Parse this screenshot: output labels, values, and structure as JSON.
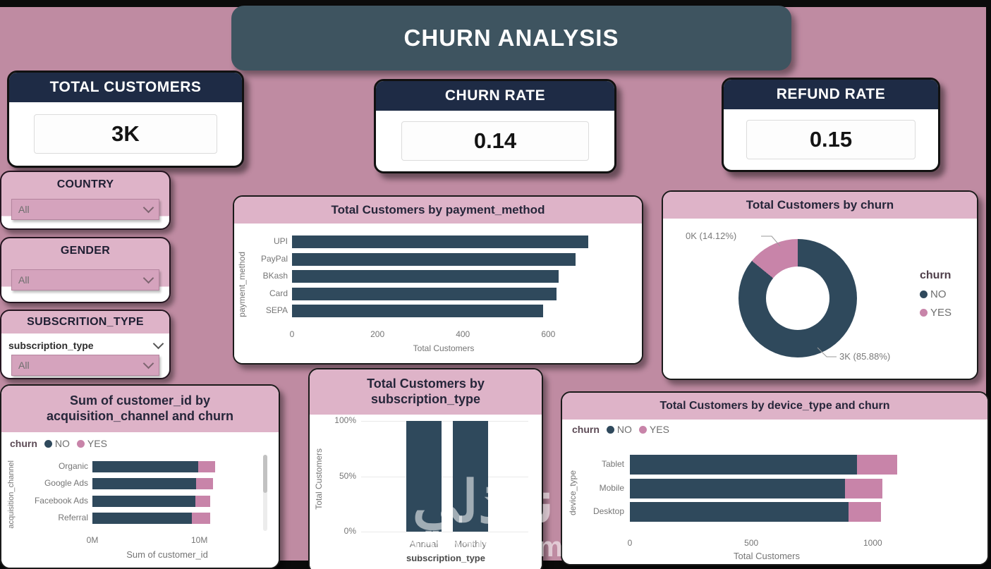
{
  "dashboard_title": "CHURN ANALYSIS",
  "kpis": [
    {
      "label": "TOTAL CUSTOMERS",
      "value": "3K"
    },
    {
      "label": "CHURN RATE",
      "value": "0.14"
    },
    {
      "label": "REFUND RATE",
      "value": "0.15"
    }
  ],
  "filters": [
    {
      "label": "COUNTRY",
      "value": "All"
    },
    {
      "label": "GENDER",
      "value": "All"
    },
    {
      "label": "SUBSCRITION_TYPE",
      "field": "subscription_type",
      "value": "All"
    }
  ],
  "watermark": {
    "arabic": "نفذلي",
    "domain": "nafezly.com"
  },
  "colors": {
    "background": "#bf8ba2",
    "title_bar": "#3e5460",
    "kpi_header": "#1e2b45",
    "chart_header": "#deb3c8",
    "bar_no": "#2f495c",
    "bar_yes": "#c884a9",
    "dropdown": "#d5a3bd",
    "axis_text": "#757575"
  },
  "chart_data": [
    {
      "id": "payment",
      "type": "bar",
      "orientation": "horizontal",
      "title": "Total Customers by payment_method",
      "categories": [
        "UPI",
        "PayPal",
        "BKash",
        "Card",
        "SEPA"
      ],
      "values": [
        694,
        664,
        624,
        620,
        588
      ],
      "xlabel": "Total Customers",
      "ylabel": "payment_method",
      "xticks": [
        0,
        200,
        400,
        600
      ],
      "xlim": [
        0,
        720
      ]
    },
    {
      "id": "churn_donut",
      "type": "pie",
      "title": "Total Customers by churn",
      "labels": [
        "NO",
        "YES"
      ],
      "values": [
        85.88,
        14.12
      ],
      "data_labels": [
        "3K (85.88%)",
        "0K (14.12%)"
      ],
      "legend_title": "churn",
      "legend_position": "right"
    },
    {
      "id": "acquisition",
      "type": "bar",
      "orientation": "horizontal",
      "stacked": true,
      "title": "Sum of customer_id by acquisition_channel and churn",
      "categories": [
        "Organic",
        "Google Ads",
        "Facebook Ads",
        "Referral"
      ],
      "series": [
        {
          "name": "NO",
          "values": [
            9.9,
            9.7,
            9.6,
            9.3
          ]
        },
        {
          "name": "YES",
          "values": [
            1.6,
            1.6,
            1.4,
            1.7
          ]
        }
      ],
      "unit": "M",
      "xlabel": "Sum of customer_id",
      "ylabel": "acquisition_channel",
      "xticks": [
        0,
        10
      ],
      "xtick_labels": [
        "0M",
        "10M"
      ],
      "xlim": [
        0,
        12
      ],
      "legend_title": "churn"
    },
    {
      "id": "subscription",
      "type": "bar",
      "orientation": "vertical",
      "title": "Total Customers by subscription_type",
      "categories": [
        "Annual",
        "Monthly"
      ],
      "values": [
        100,
        100
      ],
      "xlabel": "subscription_type",
      "ylabel": "Total Customers",
      "yticks": [
        0,
        50,
        100
      ],
      "ytick_labels": [
        "0%",
        "50%",
        "100%"
      ],
      "ylim": [
        0,
        100
      ],
      "grid": true
    },
    {
      "id": "device",
      "type": "bar",
      "orientation": "horizontal",
      "stacked": true,
      "title": "Total Customers by device_type and churn",
      "categories": [
        "Tablet",
        "Mobile",
        "Desktop"
      ],
      "series": [
        {
          "name": "NO",
          "values": [
            935,
            885,
            900
          ]
        },
        {
          "name": "YES",
          "values": [
            165,
            155,
            135
          ]
        }
      ],
      "xlabel": "Total Customers",
      "ylabel": "device_type",
      "xticks": [
        0,
        500,
        1000
      ],
      "xlim": [
        0,
        1150
      ],
      "legend_title": "churn"
    }
  ]
}
